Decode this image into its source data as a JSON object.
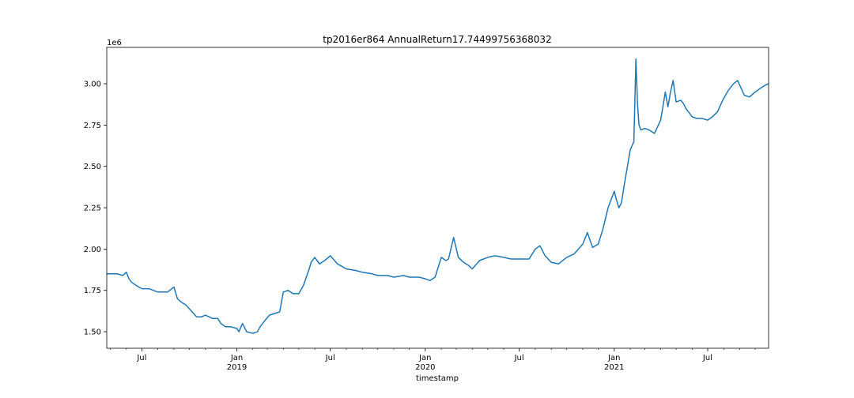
{
  "chart_data": {
    "type": "line",
    "title": "tp2016er864 AnnualReturn17.74499756368032",
    "xlabel": "timestamp",
    "ylabel": "",
    "y_offset_label": "1e6",
    "y_multiplier": 1000000,
    "ylim": [
      1.4,
      3.22
    ],
    "xlim": [
      "2018-04-24",
      "2021-10-27"
    ],
    "yticks": [
      1.5,
      1.75,
      2.0,
      2.25,
      2.5,
      2.75,
      3.0
    ],
    "ytick_labels": [
      "1.50",
      "1.75",
      "2.00",
      "2.25",
      "2.50",
      "2.75",
      "3.00"
    ],
    "xticks": [
      {
        "date": "2018-07-01",
        "label": "Jul",
        "sub": ""
      },
      {
        "date": "2019-01-01",
        "label": "Jan",
        "sub": "2019"
      },
      {
        "date": "2019-07-01",
        "label": "Jul",
        "sub": ""
      },
      {
        "date": "2020-01-01",
        "label": "Jan",
        "sub": "2020"
      },
      {
        "date": "2020-07-01",
        "label": "Jul",
        "sub": ""
      },
      {
        "date": "2021-01-01",
        "label": "Jan",
        "sub": "2021"
      },
      {
        "date": "2021-07-01",
        "label": "Jul",
        "sub": ""
      }
    ],
    "grid": false,
    "legend": "none",
    "line_color": "#1f77b4",
    "series": [
      {
        "x": [
          "2018-04-24",
          "2018-05-15",
          "2018-05-25",
          "2018-06-01",
          "2018-06-06",
          "2018-06-11",
          "2018-06-20",
          "2018-07-01",
          "2018-07-15",
          "2018-08-01",
          "2018-08-20",
          "2018-09-01",
          "2018-09-08",
          "2018-09-15",
          "2018-09-25",
          "2018-10-15",
          "2018-10-25",
          "2018-11-01",
          "2018-11-15",
          "2018-11-25",
          "2018-12-01",
          "2018-12-10",
          "2018-12-20",
          "2019-01-01",
          "2019-01-05",
          "2019-01-12",
          "2019-01-20",
          "2019-02-01",
          "2019-02-10",
          "2019-02-15",
          "2019-02-25",
          "2019-03-05",
          "2019-03-15",
          "2019-03-25",
          "2019-04-01",
          "2019-04-10",
          "2019-04-20",
          "2019-05-01",
          "2019-05-10",
          "2019-05-20",
          "2019-05-25",
          "2019-06-01",
          "2019-06-10",
          "2019-06-20",
          "2019-07-01",
          "2019-07-15",
          "2019-08-01",
          "2019-08-20",
          "2019-09-01",
          "2019-09-20",
          "2019-10-01",
          "2019-10-20",
          "2019-11-01",
          "2019-11-20",
          "2019-12-01",
          "2019-12-20",
          "2020-01-01",
          "2020-01-10",
          "2020-01-20",
          "2020-02-01",
          "2020-02-10",
          "2020-02-15",
          "2020-02-25",
          "2020-03-05",
          "2020-03-15",
          "2020-03-25",
          "2020-04-01",
          "2020-04-15",
          "2020-05-01",
          "2020-05-15",
          "2020-06-01",
          "2020-06-15",
          "2020-07-01",
          "2020-07-10",
          "2020-07-20",
          "2020-08-01",
          "2020-08-10",
          "2020-08-20",
          "2020-09-01",
          "2020-09-15",
          "2020-10-01",
          "2020-10-15",
          "2020-11-01",
          "2020-11-10",
          "2020-11-20",
          "2020-12-01",
          "2020-12-10",
          "2020-12-20",
          "2021-01-01",
          "2021-01-05",
          "2021-01-10",
          "2021-01-15",
          "2021-01-20",
          "2021-02-01",
          "2021-02-08",
          "2021-02-12",
          "2021-02-15",
          "2021-02-18",
          "2021-02-22",
          "2021-03-01",
          "2021-03-10",
          "2021-03-20",
          "2021-04-01",
          "2021-04-10",
          "2021-04-15",
          "2021-04-20",
          "2021-04-25",
          "2021-05-01",
          "2021-05-10",
          "2021-05-15",
          "2021-05-20",
          "2021-06-01",
          "2021-06-10",
          "2021-06-20",
          "2021-07-01",
          "2021-07-10",
          "2021-07-20",
          "2021-07-30",
          "2021-08-10",
          "2021-08-20",
          "2021-08-28",
          "2021-09-10",
          "2021-09-20",
          "2021-10-01",
          "2021-10-10",
          "2021-10-20",
          "2021-10-27"
        ],
        "y": [
          1.85,
          1.85,
          1.84,
          1.86,
          1.82,
          1.8,
          1.78,
          1.76,
          1.76,
          1.74,
          1.74,
          1.77,
          1.7,
          1.68,
          1.66,
          1.59,
          1.59,
          1.6,
          1.58,
          1.58,
          1.55,
          1.53,
          1.53,
          1.52,
          1.5,
          1.55,
          1.5,
          1.49,
          1.5,
          1.53,
          1.57,
          1.6,
          1.61,
          1.62,
          1.74,
          1.75,
          1.73,
          1.73,
          1.78,
          1.87,
          1.92,
          1.95,
          1.91,
          1.93,
          1.96,
          1.91,
          1.88,
          1.87,
          1.86,
          1.85,
          1.84,
          1.84,
          1.83,
          1.84,
          1.83,
          1.83,
          1.82,
          1.81,
          1.83,
          1.95,
          1.93,
          1.94,
          2.07,
          1.95,
          1.92,
          1.9,
          1.88,
          1.93,
          1.95,
          1.96,
          1.95,
          1.94,
          1.94,
          1.94,
          1.94,
          2.0,
          2.02,
          1.96,
          1.92,
          1.91,
          1.95,
          1.97,
          2.03,
          2.1,
          2.01,
          2.03,
          2.12,
          2.25,
          2.35,
          2.3,
          2.25,
          2.28,
          2.38,
          2.6,
          2.65,
          3.15,
          2.88,
          2.75,
          2.72,
          2.73,
          2.72,
          2.7,
          2.78,
          2.95,
          2.86,
          2.95,
          3.02,
          2.89,
          2.9,
          2.88,
          2.85,
          2.8,
          2.79,
          2.79,
          2.78,
          2.8,
          2.83,
          2.9,
          2.96,
          3.0,
          3.02,
          2.93,
          2.92,
          2.95,
          2.97,
          2.99,
          3.0
        ]
      }
    ]
  }
}
